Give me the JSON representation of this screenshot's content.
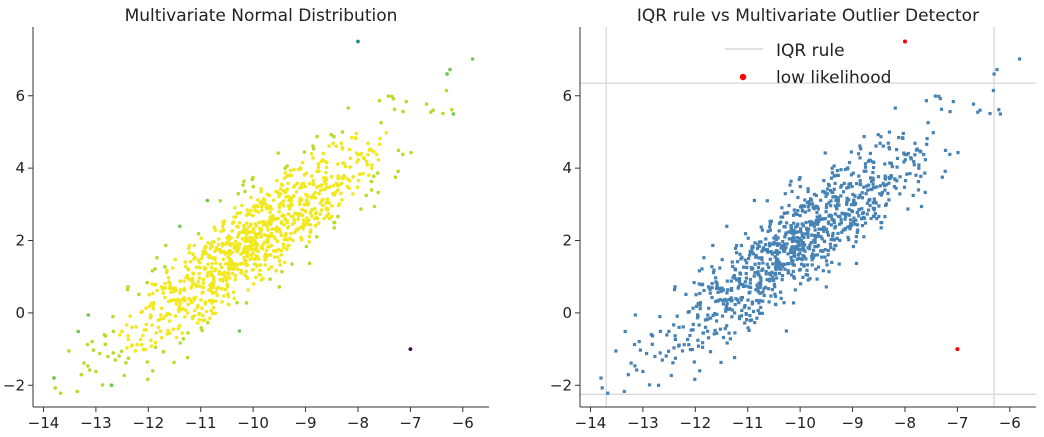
{
  "chart_data": [
    {
      "type": "scatter",
      "title": "Multivariate Normal Distribution",
      "xlabel": "",
      "ylabel": "",
      "xlim": [
        -14.2,
        -5.5
      ],
      "ylim": [
        -2.6,
        7.9
      ],
      "xticks": [
        -14,
        -13,
        -12,
        -11,
        -10,
        -9,
        -8,
        -7,
        -6
      ],
      "yticks": [
        -2,
        0,
        2,
        4,
        6
      ],
      "xtick_labels": [
        "−14",
        "−13",
        "−12",
        "−11",
        "−10",
        "−9",
        "−8",
        "−7",
        "−6"
      ],
      "ytick_labels": [
        "−2",
        "0",
        "2",
        "4",
        "6"
      ],
      "grid": false,
      "color_by_likelihood": true,
      "colors": {
        "high": "#f2e81e",
        "mid": "#b6dc2a",
        "low_mid": "#6fc84f",
        "rare": "#21908c",
        "lowest": "#440154"
      },
      "notable_points": [
        {
          "x": -8.0,
          "y": 7.5,
          "likelihood": "rare"
        },
        {
          "x": -7.0,
          "y": -1.0,
          "likelihood": "lowest"
        },
        {
          "x": -6.3,
          "y": 6.6,
          "likelihood": "low_mid"
        },
        {
          "x": -13.8,
          "y": -1.8,
          "likelihood": "low_mid"
        },
        {
          "x": -12.7,
          "y": -2.0,
          "likelihood": "low_mid"
        }
      ],
      "bulk": {
        "n": 1000,
        "center": [
          -10.0,
          2.0
        ],
        "sd_x": 1.3,
        "sd_y": 1.55,
        "correlation": 0.9
      }
    },
    {
      "type": "scatter",
      "title": "IQR rule vs Multivariate Outlier Detector",
      "xlabel": "",
      "ylabel": "",
      "xlim": [
        -14.2,
        -5.5
      ],
      "ylim": [
        -2.6,
        7.9
      ],
      "xticks": [
        -14,
        -13,
        -12,
        -11,
        -10,
        -9,
        -8,
        -7,
        -6
      ],
      "yticks": [
        -2,
        0,
        2,
        4,
        6
      ],
      "xtick_labels": [
        "−14",
        "−13",
        "−12",
        "−11",
        "−10",
        "−9",
        "−8",
        "−7",
        "−6"
      ],
      "ytick_labels": [
        "−2",
        "0",
        "2",
        "4",
        "6"
      ],
      "grid": false,
      "point_color": "#4682b4",
      "iqr_rule": {
        "x_low": -13.7,
        "x_high": -6.3,
        "y_low": -2.25,
        "y_high": 6.35,
        "color": "#d8d8d8"
      },
      "low_likelihood": {
        "color": "#ff0000",
        "points": [
          {
            "x": -8.0,
            "y": 7.5
          },
          {
            "x": -7.0,
            "y": -1.0
          }
        ]
      },
      "legend": {
        "placement": "top-center",
        "entries": [
          {
            "label": "IQR rule",
            "marker": "line"
          },
          {
            "label": "low likelihood",
            "marker": "dot"
          }
        ]
      },
      "bulk": {
        "n": 1000,
        "center": [
          -10.0,
          2.0
        ],
        "sd_x": 1.3,
        "sd_y": 1.55,
        "correlation": 0.9
      }
    }
  ]
}
